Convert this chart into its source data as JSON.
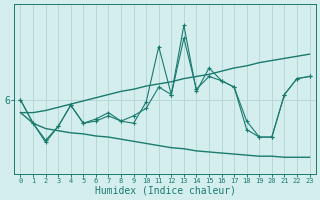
{
  "xlabel": "Humidex (Indice chaleur)",
  "background_color": "#d4eeee",
  "line_color": "#1a7a6e",
  "grid_color": "#b8d8d8",
  "x": [
    0,
    1,
    2,
    3,
    4,
    5,
    6,
    7,
    8,
    9,
    10,
    11,
    12,
    13,
    14,
    15,
    16,
    17,
    18,
    19,
    20,
    21,
    22,
    23
  ],
  "line_zigzag1": [
    6.0,
    5.78,
    5.62,
    5.75,
    5.95,
    5.78,
    5.82,
    5.88,
    5.8,
    5.85,
    5.92,
    6.12,
    6.05,
    6.58,
    6.1,
    6.22,
    6.18,
    6.12,
    5.72,
    5.65,
    5.65,
    6.05,
    6.2,
    6.22
  ],
  "line_zigzag2": [
    6.0,
    5.78,
    5.6,
    5.75,
    5.95,
    5.78,
    5.8,
    5.85,
    5.8,
    5.78,
    5.98,
    6.5,
    6.05,
    6.7,
    6.08,
    6.3,
    6.18,
    6.12,
    5.8,
    5.65,
    5.65,
    6.05,
    6.2,
    6.22
  ],
  "line_descend": [
    5.88,
    5.78,
    5.73,
    5.71,
    5.69,
    5.68,
    5.66,
    5.65,
    5.63,
    5.61,
    5.59,
    5.57,
    5.55,
    5.54,
    5.52,
    5.51,
    5.5,
    5.49,
    5.48,
    5.47,
    5.47,
    5.46,
    5.46,
    5.46
  ],
  "line_ascend": [
    5.88,
    5.88,
    5.9,
    5.93,
    5.96,
    5.99,
    6.02,
    6.05,
    6.08,
    6.1,
    6.13,
    6.15,
    6.17,
    6.2,
    6.22,
    6.24,
    6.27,
    6.3,
    6.32,
    6.35,
    6.37,
    6.39,
    6.41,
    6.43
  ],
  "ytick_value": 6.0,
  "ytick_label": "6",
  "ylim": [
    5.3,
    6.9
  ],
  "xlim": [
    -0.5,
    23.5
  ]
}
